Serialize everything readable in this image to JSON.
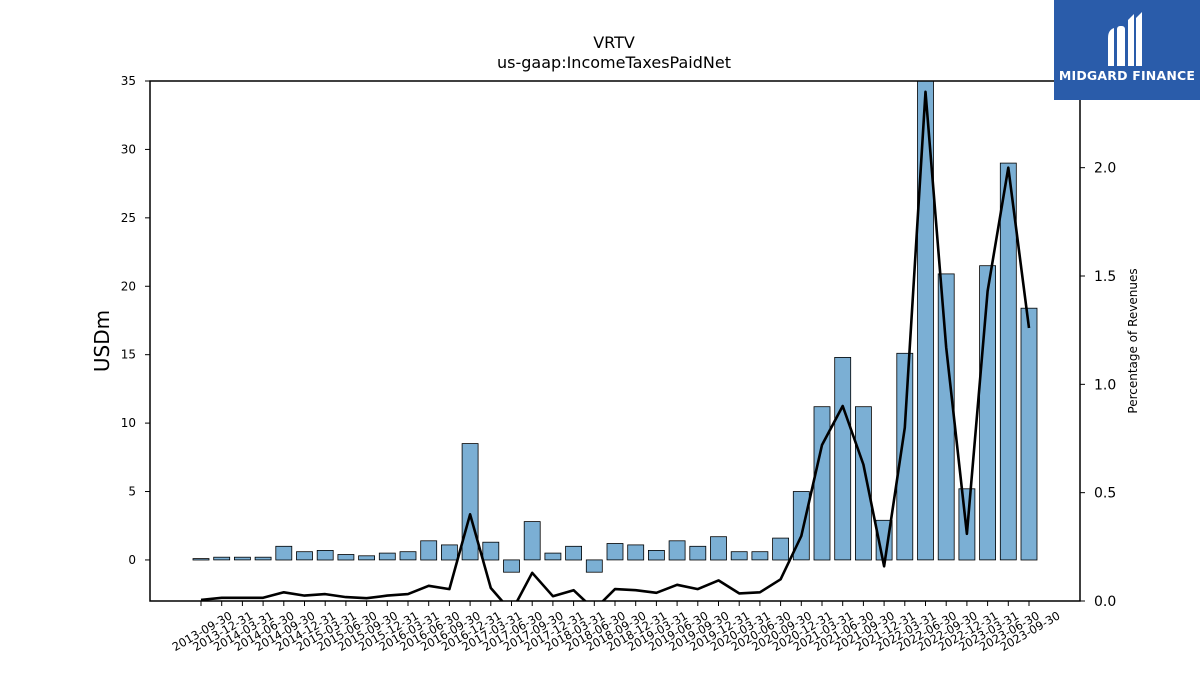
{
  "brand": {
    "name": "MIDGARD FINANCE",
    "color": "#2a5caa",
    "icon": "midgard-logo-icon"
  },
  "colors": {
    "bar": "#7bafd4",
    "line": "#000000"
  },
  "chart_data": {
    "type": "bar",
    "title": "VRTV",
    "subtitle": "us-gaap:IncomeTaxesPaidNet",
    "ylabel": "USDm",
    "ylabel_right": "Percentage of Revenues",
    "ylim": [
      -3,
      35
    ],
    "ylim_right": [
      0,
      2.4
    ],
    "yticks": [
      0,
      5,
      10,
      15,
      20,
      25,
      30,
      35
    ],
    "yticks_right": [
      "0.0",
      "0.5",
      "1.0",
      "1.5",
      "2.0"
    ],
    "categories": [
      "2013-09-30",
      "2013-12-31",
      "2014-03-31",
      "2014-06-30",
      "2014-09-30",
      "2014-12-31",
      "2015-03-31",
      "2015-06-30",
      "2015-09-30",
      "2015-12-31",
      "2016-03-31",
      "2016-06-30",
      "2016-09-30",
      "2016-12-31",
      "2017-03-31",
      "2017-06-30",
      "2017-09-30",
      "2017-12-31",
      "2018-03-31",
      "2018-06-30",
      "2018-09-30",
      "2018-12-31",
      "2019-03-31",
      "2019-06-30",
      "2019-09-30",
      "2019-12-31",
      "2020-03-31",
      "2020-06-30",
      "2020-09-30",
      "2020-12-31",
      "2021-03-31",
      "2021-06-30",
      "2021-09-30",
      "2021-12-31",
      "2022-03-31",
      "2022-06-30",
      "2022-09-30",
      "2022-12-31",
      "2023-03-31",
      "2023-06-30",
      "2023-09-30"
    ],
    "series": [
      {
        "kind": "bar",
        "axis": "left",
        "values": [
          0.1,
          0.2,
          0.2,
          0.2,
          1.0,
          0.6,
          0.7,
          0.4,
          0.3,
          0.5,
          0.6,
          1.4,
          1.1,
          8.5,
          1.3,
          -0.9,
          2.8,
          0.5,
          1.0,
          -0.9,
          1.2,
          1.1,
          0.7,
          1.4,
          1.0,
          1.7,
          0.6,
          0.6,
          1.6,
          5.0,
          11.2,
          14.8,
          11.2,
          2.9,
          15.1,
          35.0,
          20.9,
          5.2,
          21.5,
          29.0,
          18.4
        ]
      },
      {
        "kind": "line",
        "axis": "right",
        "values": [
          0.005,
          0.015,
          0.015,
          0.015,
          0.04,
          0.025,
          0.032,
          0.018,
          0.013,
          0.025,
          0.032,
          0.07,
          0.055,
          0.4,
          0.06,
          -0.05,
          0.13,
          0.022,
          0.05,
          -0.04,
          0.055,
          0.05,
          0.038,
          0.075,
          0.055,
          0.095,
          0.035,
          0.04,
          0.1,
          0.3,
          0.72,
          0.9,
          0.63,
          0.16,
          0.8,
          2.35,
          1.17,
          0.31,
          1.43,
          2.0,
          1.26
        ]
      }
    ]
  }
}
